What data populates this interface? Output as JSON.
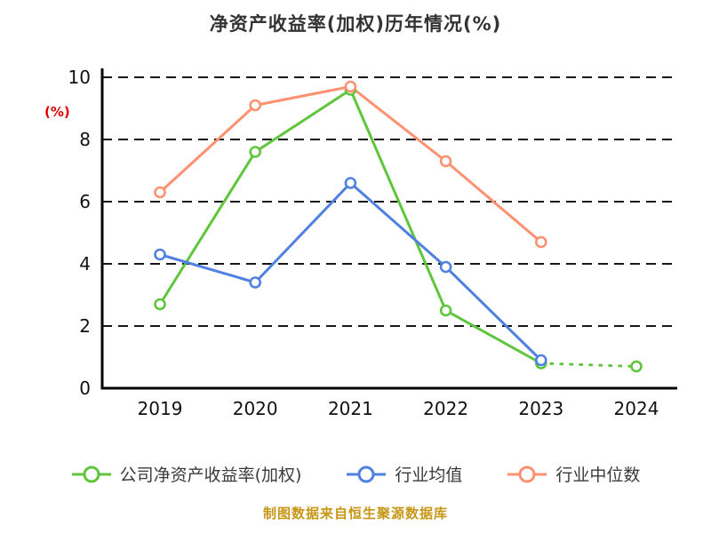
{
  "title": "净资产收益率(加权)历年情况(%)",
  "footer": "制图数据来自恒生聚源数据库",
  "colors": {
    "title": "#333333",
    "axis": "#000000",
    "grid": "#161616",
    "ylabel_red": "#dd0000",
    "footer_gold": "#c79616",
    "company_green": "#5fc63c",
    "industry_avg_blue": "#4f80e2",
    "industry_median_orange": "#ff9070"
  },
  "chart_data": {
    "type": "line",
    "title": "净资产收益率(加权)历年情况(%)",
    "x": [
      "2019",
      "2020",
      "2021",
      "2022",
      "2023",
      "2024"
    ],
    "ylabel": "(%)",
    "ylim": [
      0,
      10
    ],
    "yticks": [
      0,
      2,
      4,
      6,
      8,
      10
    ],
    "grid": "horizontal-dashed",
    "legend_position": "bottom",
    "series": [
      {
        "id": "company",
        "name": "公司净资产收益率(加权)",
        "color": "#5fc63c",
        "marker": "circle-open",
        "values": [
          2.7,
          7.6,
          9.6,
          2.5,
          0.8,
          0.7
        ],
        "dashed_from": 4
      },
      {
        "id": "industry-avg",
        "name": "行业均值",
        "color": "#4f80e2",
        "marker": "circle-open",
        "values": [
          4.3,
          3.4,
          6.6,
          3.9,
          0.9,
          null
        ]
      },
      {
        "id": "industry-median",
        "name": "行业中位数",
        "color": "#ff9070",
        "marker": "circle-open",
        "values": [
          6.3,
          9.1,
          9.7,
          7.3,
          4.7,
          null
        ]
      }
    ]
  }
}
